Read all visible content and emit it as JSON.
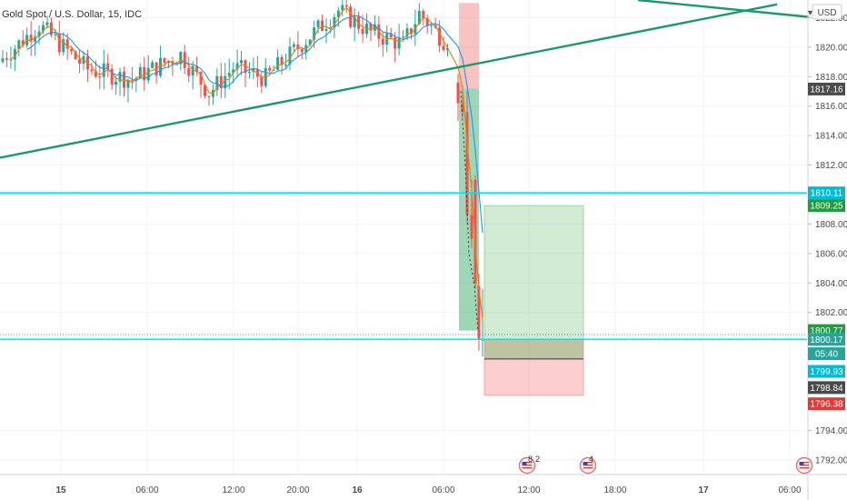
{
  "symbol_title": "Gold Spot / U.S. Dollar, 15, IDC",
  "currency_label": "USD",
  "chart_data": {
    "type": "candlestick",
    "symbol": "Gold Spot / U.S. Dollar",
    "interval": "15",
    "source": "IDC",
    "ylim": [
      1791,
      1823.2
    ],
    "y_ticks": [
      "1822.00",
      "1820.00",
      "1818.00",
      "1816.00",
      "1814.00",
      "1812.00",
      "1808.00",
      "1806.00",
      "1804.00",
      "1802.00",
      "1794.00",
      "1792.00"
    ],
    "x_ticks": [
      "15",
      "06:00",
      "12:00",
      "20:00",
      "16",
      "06:00",
      "12:00",
      "18:00",
      "17",
      "06:00"
    ],
    "price_badges": [
      {
        "label": "1817.16",
        "value": 1817.16,
        "bg": "#4a4a4a"
      },
      {
        "label": "1810.11",
        "value": 1810.11,
        "bg": "#00bcd4"
      },
      {
        "label": "1809.25",
        "value": 1809.25,
        "bg": "#1e9e3f"
      },
      {
        "label": "1800.77",
        "value": 1800.77,
        "bg": "#1e9e3f"
      },
      {
        "label": "1800.17",
        "value": 1800.17,
        "bg": "#26a69a"
      },
      {
        "label": "05:40",
        "value": 1799.2,
        "bg": "#26a69a"
      },
      {
        "label": "1799.93",
        "value": 1798.0,
        "bg": "#00bcd4"
      },
      {
        "label": "1798.84",
        "value": 1796.9,
        "bg": "#4a4a4a"
      },
      {
        "label": "1796.38",
        "value": 1795.8,
        "bg": "#e53935"
      }
    ],
    "horizontal_lines": [
      {
        "value": 1810.11,
        "color": "#00e5ff"
      },
      {
        "value": 1800.17,
        "color": "#00e5ff"
      }
    ],
    "event_markers": [
      {
        "label": "8",
        "count": "2"
      },
      {
        "label": "4",
        "count": ""
      }
    ],
    "candles_recent": [
      {
        "open": 1817.6,
        "high": 1818.2,
        "low": 1815.0,
        "close": 1816.2
      },
      {
        "open": 1816.2,
        "high": 1817.4,
        "low": 1815.2,
        "close": 1815.6
      },
      {
        "open": 1815.6,
        "high": 1817.0,
        "low": 1808.0,
        "close": 1808.6
      },
      {
        "open": 1808.6,
        "high": 1811.0,
        "low": 1806.4,
        "close": 1807.0
      },
      {
        "open": 1811.0,
        "high": 1811.3,
        "low": 1803.6,
        "close": 1804.0
      },
      {
        "open": 1803.8,
        "high": 1804.6,
        "low": 1799.4,
        "close": 1800.2
      },
      {
        "open": 1800.1,
        "high": 1803.6,
        "low": 1799.0,
        "close": 1800.17
      }
    ],
    "trade_setup": {
      "entry": 1800.17,
      "target": 1809.25,
      "stop": 1796.38
    },
    "colors": {
      "up": "#26a69a",
      "down": "#ef5350",
      "trendline": "#1a9a6c",
      "ma_fast": "#f57c00",
      "ma_slow": "#2196f3"
    }
  }
}
